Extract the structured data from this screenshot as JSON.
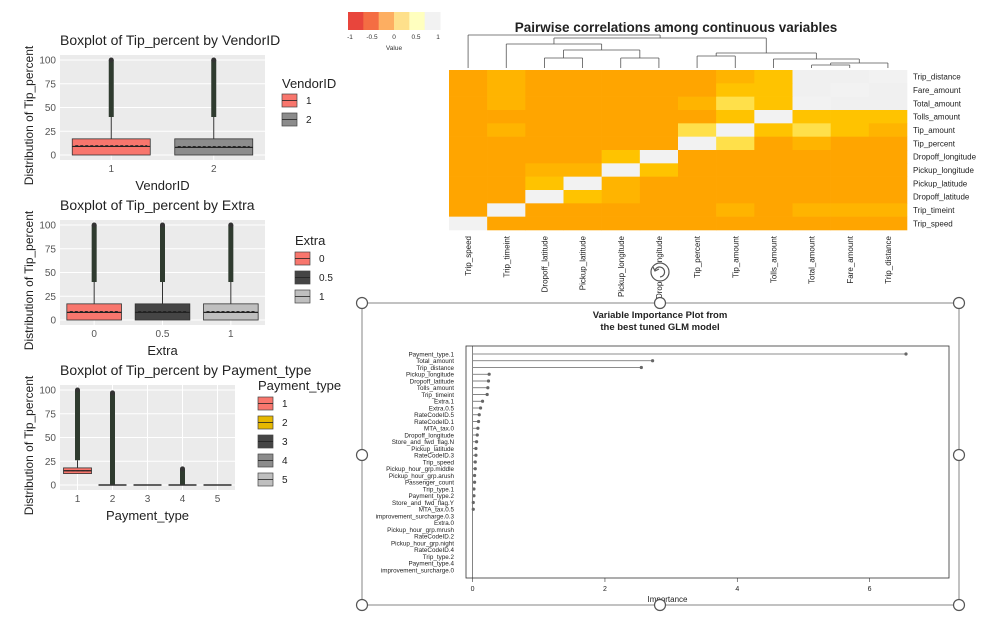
{
  "colors": {
    "panel_bg": "#ebebeb",
    "grid": "#ffffff",
    "box_red": "#f8766d",
    "box_gray": "#8c8c8c",
    "box_dark": "#454545",
    "box_light": "#bfbfbf",
    "box_gold": "#e6b800",
    "heat_base": "#ffa500",
    "heat_diag": "#f2f2f2",
    "heat_light": "#ffe566",
    "lollipop": "#666666",
    "handle": "#555555"
  },
  "icons": {
    "rotate_handle": "rotate-icon"
  },
  "chart_data": [
    {
      "id": "box_vendor",
      "type": "boxplot",
      "title": "Boxplot of Tip_percent by VendorID",
      "xlabel": "VendorID",
      "ylabel": "Distribution of Tip_percent",
      "ylim": [
        0,
        100
      ],
      "yticks": [
        0,
        25,
        50,
        75,
        100
      ],
      "categories": [
        "1",
        "2"
      ],
      "legend_title": "VendorID",
      "legend": [
        "1",
        "2"
      ],
      "fills": [
        "#f8766d",
        "#8c8c8c"
      ],
      "q1": [
        0,
        0
      ],
      "median": [
        9,
        8
      ],
      "q3": [
        17,
        17
      ],
      "mean": [
        10,
        9
      ],
      "whisker_high": [
        40,
        40
      ],
      "outlier_max": [
        100,
        100
      ]
    },
    {
      "id": "box_extra",
      "type": "boxplot",
      "title": "Boxplot of Tip_percent by Extra",
      "xlabel": "Extra",
      "ylabel": "Distribution of Tip_percent",
      "ylim": [
        0,
        100
      ],
      "yticks": [
        0,
        25,
        50,
        75,
        100
      ],
      "categories": [
        "0",
        "0.5",
        "1"
      ],
      "legend_title": "Extra",
      "legend": [
        "0",
        "0.5",
        "1"
      ],
      "fills": [
        "#f8766d",
        "#454545",
        "#bfbfbf"
      ],
      "q1": [
        0,
        0,
        0
      ],
      "median": [
        8,
        8,
        8
      ],
      "q3": [
        17,
        17,
        17
      ],
      "mean": [
        9,
        9,
        9
      ],
      "whisker_high": [
        40,
        40,
        40
      ],
      "outlier_max": [
        100,
        100,
        100
      ]
    },
    {
      "id": "box_payment",
      "type": "boxplot",
      "title": "Boxplot of Tip_percent by Payment_type",
      "xlabel": "Payment_type",
      "ylabel": "Distribution of Tip_percent",
      "ylim": [
        0,
        100
      ],
      "yticks": [
        0,
        25,
        50,
        75,
        100
      ],
      "categories": [
        "1",
        "2",
        "3",
        "4",
        "5"
      ],
      "legend_title": "Payment_type",
      "legend": [
        "1",
        "2",
        "3",
        "4",
        "5"
      ],
      "fills": [
        "#f8766d",
        "#e6b800",
        "#454545",
        "#8c8c8c",
        "#bfbfbf"
      ],
      "q1": [
        12,
        0,
        0,
        0,
        0
      ],
      "median": [
        15,
        0,
        0,
        0,
        0
      ],
      "q3": [
        18,
        0,
        0,
        0,
        0
      ],
      "mean": [
        15,
        0,
        0,
        0,
        0
      ],
      "whisker_high": [
        26,
        0,
        0,
        0,
        0
      ],
      "outlier_max": [
        100,
        97,
        0,
        17,
        0
      ]
    },
    {
      "id": "heatmap",
      "type": "heatmap",
      "title": "Pairwise correlations among continuous variables",
      "colorbar_label": "Value",
      "colorbar_ticks": [
        "-1",
        "-0.5",
        "0",
        "0.5",
        "1"
      ],
      "rows": [
        "Trip_distance",
        "Fare_amount",
        "Total_amount",
        "Tolls_amount",
        "Tip_amount",
        "Tip_percent",
        "Dropoff_longitude",
        "Pickup_longitude",
        "Pickup_latitude",
        "Dropoff_latitude",
        "Trip_timeint",
        "Trip_speed"
      ],
      "columns": [
        "Trip_speed",
        "Trip_timeint",
        "Dropoff_latitude",
        "Pickup_latitude",
        "Pickup_longitude",
        "Dropoff_longitude",
        "Tip_percent",
        "Tip_amount",
        "Tolls_amount",
        "Total_amount",
        "Fare_amount",
        "Trip_distance"
      ],
      "values": [
        [
          0.0,
          0.1,
          0.0,
          0.0,
          0.0,
          0.0,
          0.05,
          0.25,
          0.3,
          0.95,
          0.95,
          1.0
        ],
        [
          0.0,
          0.1,
          0.0,
          0.0,
          0.0,
          0.0,
          0.05,
          0.3,
          0.3,
          0.95,
          1.0,
          0.95
        ],
        [
          0.0,
          0.1,
          0.0,
          0.0,
          0.0,
          0.0,
          0.1,
          0.5,
          0.4,
          1.0,
          0.95,
          0.95
        ],
        [
          0.0,
          0.05,
          0.0,
          0.0,
          0.0,
          0.0,
          0.05,
          0.3,
          1.0,
          0.4,
          0.3,
          0.3
        ],
        [
          0.0,
          0.1,
          0.0,
          0.0,
          0.0,
          0.0,
          0.45,
          1.0,
          0.3,
          0.5,
          0.3,
          0.25
        ],
        [
          0.0,
          0.05,
          0.0,
          0.0,
          0.0,
          0.0,
          1.0,
          0.45,
          0.05,
          0.1,
          0.05,
          0.05
        ],
        [
          0.0,
          0.0,
          0.05,
          0.05,
          0.4,
          1.0,
          0.0,
          0.0,
          0.0,
          0.0,
          0.0,
          0.0
        ],
        [
          0.0,
          0.0,
          0.1,
          0.1,
          1.0,
          0.4,
          0.0,
          0.0,
          0.0,
          0.0,
          0.0,
          0.0
        ],
        [
          0.0,
          0.0,
          0.3,
          1.0,
          0.1,
          0.05,
          0.0,
          0.0,
          0.0,
          0.0,
          0.0,
          0.0
        ],
        [
          0.0,
          0.0,
          1.0,
          0.3,
          0.1,
          0.05,
          0.0,
          0.0,
          0.0,
          0.0,
          0.0,
          0.0
        ],
        [
          0.0,
          1.0,
          0.0,
          0.0,
          0.0,
          0.0,
          0.05,
          0.1,
          0.05,
          0.1,
          0.1,
          0.1
        ],
        [
          1.0,
          0.0,
          0.0,
          0.0,
          0.0,
          0.0,
          0.0,
          0.0,
          0.0,
          0.0,
          0.0,
          0.0
        ]
      ]
    },
    {
      "id": "importance",
      "type": "lollipop",
      "title": "Variable Importance Plot from",
      "subtitle": "the best tuned GLM model",
      "xlabel": "Importance",
      "xticks": [
        0,
        2,
        4,
        6
      ],
      "xlim": [
        -0.1,
        7.2
      ],
      "labels": [
        "Payment_type.1",
        "Total_amount",
        "Trip_distance",
        "Pickup_longitude",
        "Dropoff_latitude",
        "Tolls_amount",
        "Trip_timeint",
        "Extra.1",
        "Extra.0.5",
        "RateCodeID.5",
        "RateCodeID.1",
        "MTA_tax.0",
        "Dropoff_longitude",
        "Store_and_fwd_flag.N",
        "Pickup_latitude",
        "RateCodeID.3",
        "Trip_speed",
        "Pickup_hour_grp.middle",
        "Pickup_hour_grp.arush",
        "Passenger_count",
        "Trip_type.1",
        "Payment_type.2",
        "Store_and_fwd_flag.Y",
        "MTA_tax.0.5",
        "improvement_surcharge.0.3",
        "Extra.0",
        "Pickup_hour_grp.mrush",
        "RateCodeID.2",
        "Pickup_hour_grp.night",
        "RateCodeID.4",
        "Trip_type.2",
        "Payment_type.4",
        "improvement_surcharge.0"
      ],
      "values": [
        6.55,
        2.72,
        2.55,
        0.25,
        0.24,
        0.23,
        0.22,
        0.15,
        0.12,
        0.1,
        0.09,
        0.08,
        0.07,
        0.06,
        0.05,
        0.05,
        0.04,
        0.04,
        0.03,
        0.03,
        0.02,
        0.02,
        0.01,
        0.01,
        0.0,
        0.0,
        0.0,
        0.0,
        0.0,
        0.0,
        0.0,
        0.0,
        0.0
      ]
    }
  ]
}
